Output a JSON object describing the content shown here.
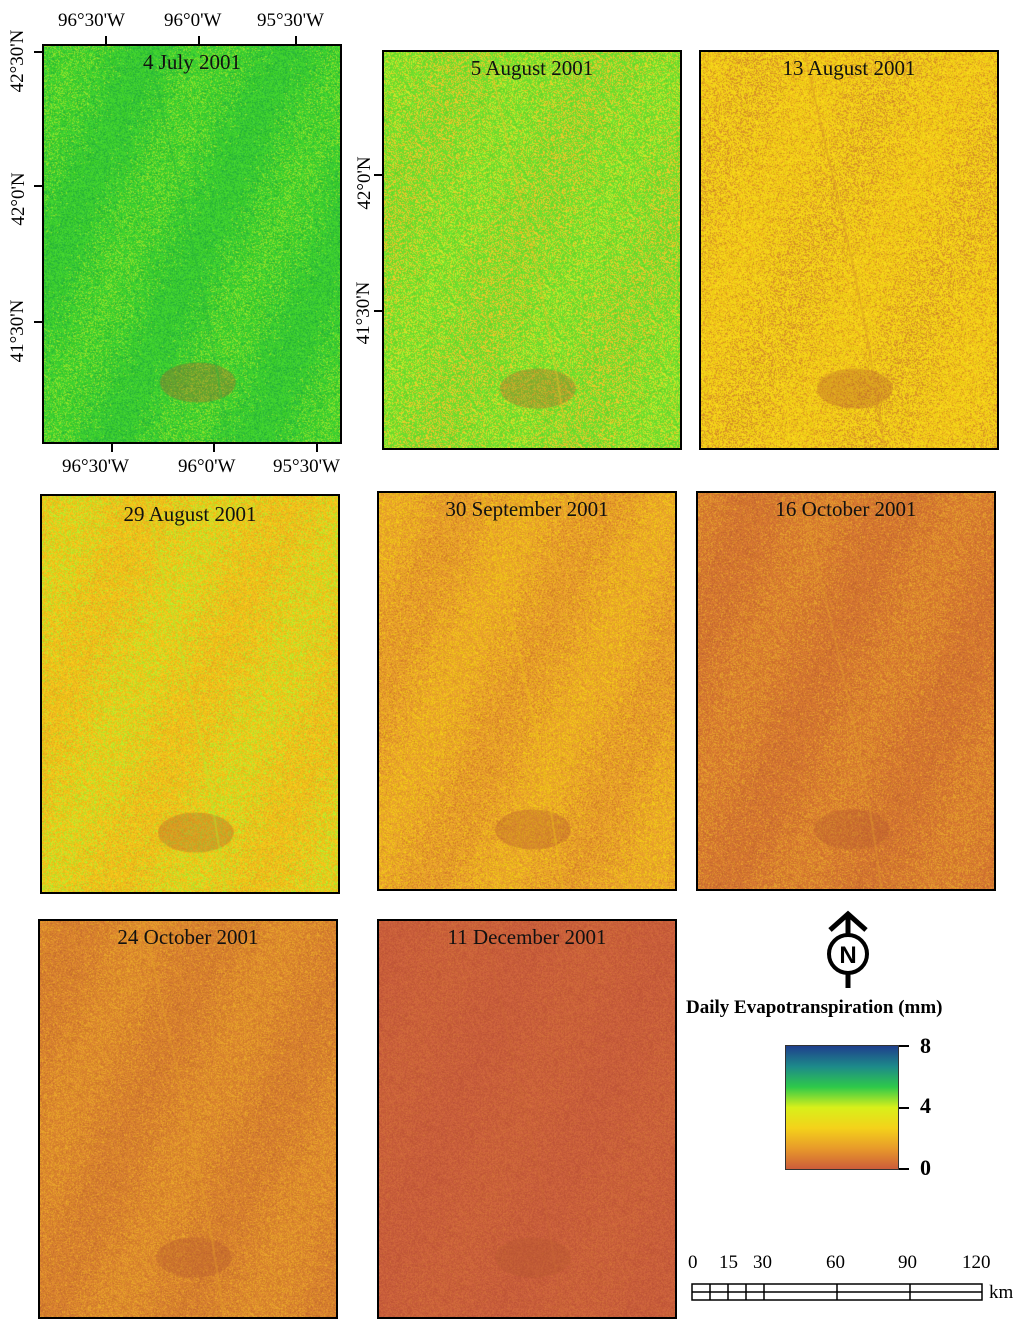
{
  "panels": [
    {
      "title": "4 July 2001",
      "colors": [
        "#3fd12e",
        "#8fe02a",
        "#2bb83a"
      ],
      "level": 0.58
    },
    {
      "title": "5 August 2001",
      "colors": [
        "#6fdd2c",
        "#c4e82a",
        "#e8c82a"
      ],
      "level": 0.52
    },
    {
      "title": "13 August 2001",
      "colors": [
        "#f3d218",
        "#edb41a",
        "#d89426"
      ],
      "level": 0.38
    },
    {
      "title": "29 August 2001",
      "colors": [
        "#f0c419",
        "#e8ae20",
        "#b9e82a"
      ],
      "level": 0.36
    },
    {
      "title": "30 September 2001",
      "colors": [
        "#e8a12a",
        "#d98429",
        "#f0c419"
      ],
      "level": 0.28
    },
    {
      "title": "16 October 2001",
      "colors": [
        "#d6782f",
        "#c96a32",
        "#e39b2c"
      ],
      "level": 0.22
    },
    {
      "title": "24 October 2001",
      "colors": [
        "#d9832d",
        "#cc7230",
        "#e6a02a"
      ],
      "level": 0.24
    },
    {
      "title": "11 December 2001",
      "colors": [
        "#c95e3a",
        "#c55a3b",
        "#cd6838"
      ],
      "level": 0.12
    }
  ],
  "axes": {
    "top_ticks": [
      "96°30'W",
      "96°0'W",
      "95°30'W"
    ],
    "bottom_ticks": [
      "96°30'W",
      "96°0'W",
      "95°30'W"
    ],
    "left_ticks": [
      "42°30'N",
      "42°0'N",
      "41°30'N"
    ],
    "inner_ticks": [
      "42°0'N",
      "41°30'N"
    ]
  },
  "north_arrow": {
    "letter": "N"
  },
  "legend": {
    "title": "Daily Evapotranspiration (mm)",
    "max_label": "8",
    "mid_label": "4",
    "min_label": "0",
    "colors": [
      "#1e3f8c",
      "#1d8a8a",
      "#2ec94a",
      "#d8f01a",
      "#f4d21a",
      "#e89a2a",
      "#cd5c3a"
    ]
  },
  "scale_bar": {
    "labels": [
      "0",
      "15",
      "30",
      "60",
      "90",
      "120"
    ],
    "unit": "km"
  }
}
